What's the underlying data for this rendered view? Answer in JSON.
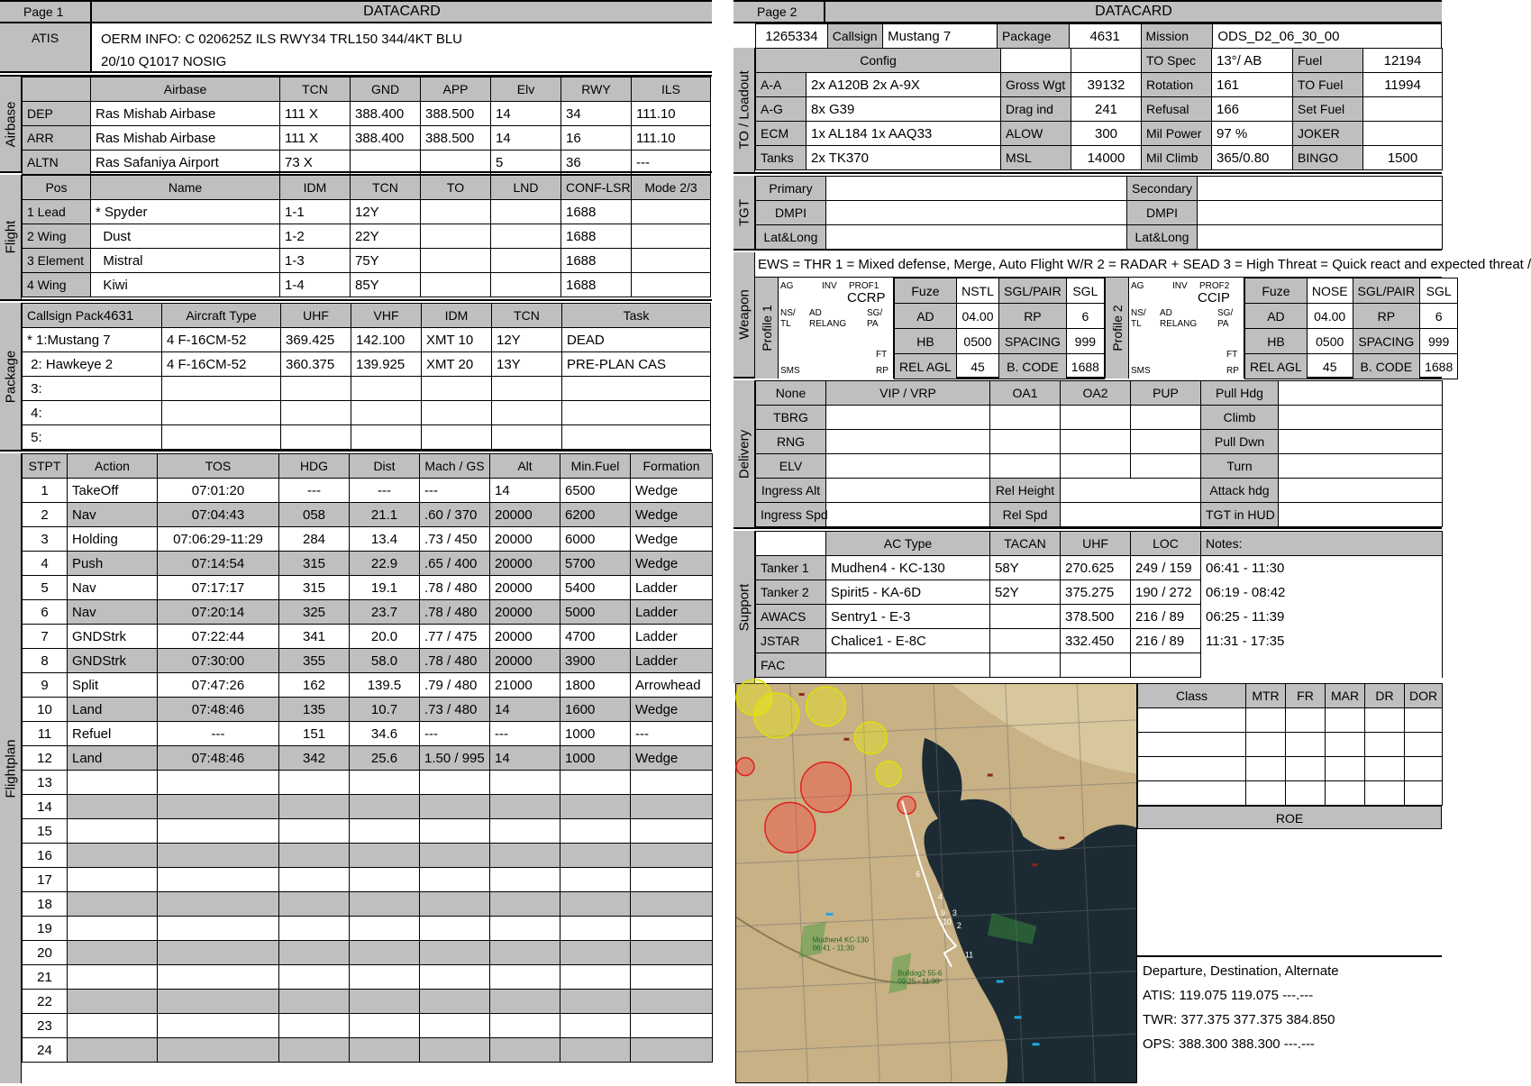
{
  "page1": {
    "page_label": "Page 1",
    "title": "DATACARD",
    "atis": {
      "label": "ATIS",
      "line1": "OERM INFO: C 020625Z ILS RWY34 TRL150 344/4KT BLU",
      "line2": "20/10 Q1017  NOSIG"
    },
    "airbase": {
      "section": "Airbase",
      "headers": [
        "",
        "Airbase",
        "TCN",
        "GND",
        "APP",
        "Elv",
        "RWY",
        "ILS"
      ],
      "rows": [
        [
          "DEP",
          "Ras Mishab Airbase",
          "111 X",
          "388.400",
          "388.500",
          "14",
          "34",
          "111.10"
        ],
        [
          "ARR",
          "Ras Mishab Airbase",
          "111 X",
          "388.400",
          "388.500",
          "14",
          "16",
          "111.10"
        ],
        [
          "ALTN",
          "Ras Safaniya Airport",
          "73 X",
          "",
          "",
          "5",
          "36",
          "---"
        ]
      ]
    },
    "flight": {
      "section": "Flight",
      "headers": [
        "Pos",
        "Name",
        "IDM",
        "TCN",
        "TO",
        "LND",
        "CONF-LSR",
        "Mode 2/3"
      ],
      "rows": [
        [
          "1 Lead",
          "* Spyder",
          "1-1",
          "12Y",
          "",
          "",
          "1688",
          ""
        ],
        [
          "2 Wing",
          "  Dust",
          "1-2",
          "22Y",
          "",
          "",
          "1688",
          ""
        ],
        [
          "3 Element",
          "  Mistral",
          "1-3",
          "75Y",
          "",
          "",
          "1688",
          ""
        ],
        [
          "4 Wing",
          "  Kiwi",
          "1-4",
          "85Y",
          "",
          "",
          "1688",
          ""
        ]
      ]
    },
    "package": {
      "section": "Package",
      "callsign_pack_label": "Callsign Pack",
      "callsign_pack_value": "4631",
      "headers": [
        "Aircraft Type",
        "UHF",
        "VHF",
        "IDM",
        "TCN",
        "Task"
      ],
      "rows": [
        [
          "* 1:Mustang 7",
          "4 F-16CM-52",
          "369.425",
          "142.100",
          "XMT 10",
          "12Y",
          "DEAD"
        ],
        [
          " 2: Hawkeye 2",
          "4 F-16CM-52",
          "360.375",
          "139.925",
          "XMT 20",
          "13Y",
          "PRE-PLAN CAS"
        ],
        [
          " 3:",
          "",
          "",
          "",
          "",
          "",
          ""
        ],
        [
          " 4:",
          "",
          "",
          "",
          "",
          "",
          ""
        ],
        [
          " 5:",
          "",
          "",
          "",
          "",
          "",
          ""
        ]
      ]
    },
    "flightplan": {
      "section": "Flightplan",
      "headers": [
        "STPT",
        "Action",
        "TOS",
        "HDG",
        "Dist",
        "Mach / GS",
        "Alt",
        "Min.Fuel",
        "Formation"
      ],
      "rows": [
        [
          "1",
          "TakeOff",
          "07:01:20",
          "---",
          "---",
          "---",
          "14",
          "6500",
          "Wedge"
        ],
        [
          "2",
          "Nav",
          "07:04:43",
          "058",
          "21.1",
          ".60 / 370",
          "20000",
          "6200",
          "Wedge"
        ],
        [
          "3",
          "Holding",
          "07:06:29-11:29",
          "284",
          "13.4",
          ".73 / 450",
          "20000",
          "6000",
          "Wedge"
        ],
        [
          "4",
          "Push",
          "07:14:54",
          "315",
          "22.9",
          ".65 / 400",
          "20000",
          "5700",
          "Wedge"
        ],
        [
          "5",
          "Nav",
          "07:17:17",
          "315",
          "19.1",
          ".78 / 480",
          "20000",
          "5400",
          "Ladder"
        ],
        [
          "6",
          "Nav",
          "07:20:14",
          "325",
          "23.7",
          ".78 / 480",
          "20000",
          "5000",
          "Ladder"
        ],
        [
          "7",
          "GNDStrk",
          "07:22:44",
          "341",
          "20.0",
          ".77 / 475",
          "20000",
          "4700",
          "Ladder"
        ],
        [
          "8",
          "GNDStrk",
          "07:30:00",
          "355",
          "58.0",
          ".78 / 480",
          "20000",
          "3900",
          "Ladder"
        ],
        [
          "9",
          "Split",
          "07:47:26",
          "162",
          "139.5",
          ".79 / 480",
          "21000",
          "1800",
          "Arrowhead"
        ],
        [
          "10",
          "Land",
          "07:48:46",
          "135",
          "10.7",
          ".73 / 480",
          "14",
          "1600",
          "Wedge"
        ],
        [
          "11",
          "Refuel",
          "---",
          "151",
          "34.6",
          "---",
          "---",
          "1000",
          "---"
        ],
        [
          "12",
          "Land",
          "07:48:46",
          "342",
          "25.6",
          "1.50 / 995",
          "14",
          "1000",
          "Wedge"
        ],
        [
          "13",
          "",
          "",
          "",
          "",
          "",
          "",
          "",
          ""
        ],
        [
          "14",
          "",
          "",
          "",
          "",
          "",
          "",
          "",
          ""
        ],
        [
          "15",
          "",
          "",
          "",
          "",
          "",
          "",
          "",
          ""
        ],
        [
          "16",
          "",
          "",
          "",
          "",
          "",
          "",
          "",
          ""
        ],
        [
          "17",
          "",
          "",
          "",
          "",
          "",
          "",
          "",
          ""
        ],
        [
          "18",
          "",
          "",
          "",
          "",
          "",
          "",
          "",
          ""
        ],
        [
          "19",
          "",
          "",
          "",
          "",
          "",
          "",
          "",
          ""
        ],
        [
          "20",
          "",
          "",
          "",
          "",
          "",
          "",
          "",
          ""
        ],
        [
          "21",
          "",
          "",
          "",
          "",
          "",
          "",
          "",
          ""
        ],
        [
          "22",
          "",
          "",
          "",
          "",
          "",
          "",
          "",
          ""
        ],
        [
          "23",
          "",
          "",
          "",
          "",
          "",
          "",
          "",
          ""
        ],
        [
          "24",
          "",
          "",
          "",
          "",
          "",
          "",
          "",
          ""
        ]
      ]
    }
  },
  "page2": {
    "page_label": "Page 2",
    "title": "DATACARD",
    "top": {
      "id": "1265334",
      "callsign_label": "Callsign",
      "callsign": "Mustang 7",
      "package_label": "Package",
      "package": "4631",
      "mission_label": "Mission",
      "mission": "ODS_D2_06_30_00"
    },
    "loadout": {
      "section": "TO / Loadout",
      "config_label": "Config",
      "rows": [
        [
          "A-A",
          "2x A120B 2x A-9X",
          "Gross Wgt",
          "39132",
          "Rotation",
          "161",
          "TO Fuel",
          "11994"
        ],
        [
          "A-G",
          "8x G39",
          "Drag ind",
          "241",
          "Refusal",
          "166",
          "Set Fuel",
          ""
        ],
        [
          "ECM",
          "1x AL184 1x AAQ33",
          "ALOW",
          "300",
          "Mil Power",
          "97 %",
          "JOKER",
          ""
        ],
        [
          "Tanks",
          "2x TK370",
          "MSL",
          "14000",
          "Mil Climb",
          "365/0.80",
          "BINGO",
          "1500"
        ]
      ],
      "to_spec_label": "TO Spec",
      "to_spec": "13°/ AB",
      "fuel_label": "Fuel",
      "fuel": "12194"
    },
    "tgt": {
      "section": "TGT",
      "rows": [
        [
          "Primary",
          "",
          "Secondary",
          ""
        ],
        [
          "DMPI",
          "",
          "DMPI",
          ""
        ],
        [
          "Lat&Long",
          "",
          "Lat&Long",
          ""
        ]
      ]
    },
    "weapon": {
      "section": "Weapon",
      "ews": "EWS = THR 1 = Mixed defense, Merge, Auto Flight W/R  2 = RADAR + SEAD  3 = High Threat = Quick react and expected threat /",
      "dial": {
        "ag": "AG",
        "inv": "INV",
        "ns": "NS/",
        "tl": "TL",
        "ad": "AD",
        "relang": "RELANG",
        "sg": "SG/",
        "pa": "PA",
        "ft": "FT",
        "sms": "SMS",
        "rp": "RP"
      },
      "profiles": [
        {
          "label": "Profile 1",
          "prof": "PROF1",
          "mode": "CCRP",
          "rows": [
            [
              "Fuze",
              "NSTL",
              "SGL/PAIR",
              "SGL"
            ],
            [
              "AD",
              "04.00",
              "RP",
              "6"
            ],
            [
              "HB",
              "0500",
              "SPACING",
              "999"
            ],
            [
              "REL AGL",
              "45",
              "B. CODE",
              "1688"
            ]
          ]
        },
        {
          "label": "Profile 2",
          "prof": "PROF2",
          "mode": "CCIP",
          "rows": [
            [
              "Fuze",
              "NOSE",
              "SGL/PAIR",
              "SGL"
            ],
            [
              "AD",
              "04.00",
              "RP",
              "6"
            ],
            [
              "HB",
              "0500",
              "SPACING",
              "999"
            ],
            [
              "REL AGL",
              "45",
              "B. CODE",
              "1688"
            ]
          ]
        }
      ]
    },
    "delivery": {
      "section": "Delivery",
      "header": [
        "None",
        "VIP / VRP",
        "OA1",
        "OA2",
        "PUP",
        "Pull Hdg"
      ],
      "rows": [
        [
          "TBRG",
          "Climb"
        ],
        [
          "RNG",
          "Pull Dwn"
        ],
        [
          "ELV",
          "Turn"
        ]
      ],
      "ingress_alt": "Ingress Alt",
      "rel_height": "Rel Height",
      "attack_hdg": "Attack hdg",
      "ingress_spd": "Ingress Spd",
      "rel_spd": "Rel Spd",
      "tgt_hud": "TGT in HUD"
    },
    "support": {
      "section": "Support",
      "headers": [
        "AC Type",
        "TACAN",
        "UHF",
        "LOC",
        "Notes:"
      ],
      "rows": [
        [
          "Tanker 1",
          "Mudhen4 - KC-130",
          "58Y",
          "270.625",
          "249 / 159",
          "06:41 - 11:30"
        ],
        [
          "Tanker 2",
          "Spirit5 - KA-6D",
          "52Y",
          "375.275",
          "190 / 272",
          "06:19 - 08:42"
        ],
        [
          "AWACS",
          "Sentry1 - E-3",
          "",
          "378.500",
          "216 / 89",
          "06:25 - 11:39"
        ],
        [
          "JSTAR",
          "Chalice1 - E-8C",
          "",
          "332.450",
          "216 / 89",
          "11:31 - 17:35"
        ],
        [
          "FAC",
          "",
          "",
          "",
          "",
          ""
        ]
      ]
    },
    "threat": {
      "headers": [
        "Class",
        "MTR",
        "FR",
        "MAR",
        "DR",
        "DOR"
      ]
    },
    "roe": "ROE",
    "map": {
      "labels": [
        "Mudhen4 KC-130",
        "06:41 - 11:30",
        "Bulldog2 55-6",
        "09:25 - 11:30"
      ],
      "waypoints": [
        "6",
        "4",
        "3",
        "2",
        "10",
        "9",
        "11"
      ]
    },
    "freq": {
      "title": "Departure, Destination, Alternate",
      "atis": "ATIS: 119.075  119.075  ---.---",
      "twr": "TWR: 377.375  377.375  384.850",
      "ops": "OPS: 388.300  388.300  ---.---"
    }
  }
}
